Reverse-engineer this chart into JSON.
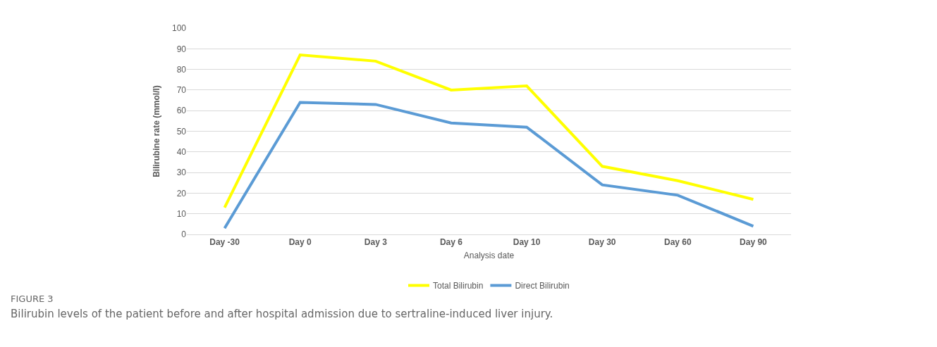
{
  "chart_data": {
    "type": "line",
    "xlabel": "Analysis date",
    "ylabel": "Bilirubine rate (mmol/l)",
    "categories": [
      "Day -30",
      "Day 0",
      "Day 3",
      "Day 6",
      "Day 10",
      "Day 30",
      "Day 60",
      "Day 90"
    ],
    "series": [
      {
        "name": "Total Bilirubin",
        "color": "#ffff00",
        "values": [
          13,
          87,
          84,
          70,
          72,
          33,
          26,
          17
        ]
      },
      {
        "name": "Direct Bilirubin",
        "color": "#5b9bd5",
        "values": [
          3,
          64,
          63,
          54,
          52,
          24,
          19,
          4
        ]
      }
    ],
    "ylim": [
      0,
      100
    ],
    "yticks": [
      0,
      10,
      20,
      30,
      40,
      50,
      60,
      70,
      80,
      90,
      100
    ],
    "grid": "y",
    "legend": "bottom",
    "marker": "none",
    "line_style": "solid",
    "annotations": [
      "FIGURE 3",
      "Bilirubin levels of the patient before and after hospital admission due to sertraline-induced liver injury."
    ]
  }
}
